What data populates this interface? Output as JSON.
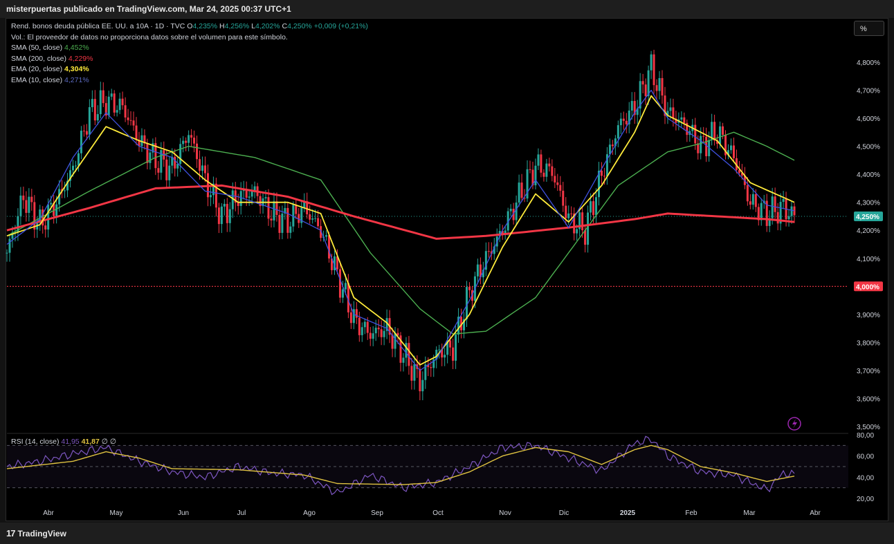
{
  "header": {
    "title": "misterpuertas publicado en TradingView.com, Mar 24, 2025 00:37 UTC+1"
  },
  "footer": {
    "brand": "TradingView"
  },
  "toolbar": {
    "scale_label": "%"
  },
  "legend": {
    "symbol": "Rend. bonos deuda pública EE. UU. a 10A · 1D · TVC",
    "o_label": "O",
    "o_value": "4,235%",
    "h_label": "H",
    "h_value": "4,256%",
    "l_label": "L",
    "l_value": "4,202%",
    "c_label": "C",
    "c_value": "4,250%",
    "change": "+0,009 (+0,21%)",
    "vol_note": "Vol.: El proveedor de datos no proporciona datos sobre el volumen para este símbolo.",
    "indicators": [
      {
        "name": "SMA (50, close)",
        "value": "4,452%",
        "color": "#4caf50"
      },
      {
        "name": "SMA (200, close)",
        "value": "4,229%",
        "color": "#f23645"
      },
      {
        "name": "EMA (20, close)",
        "value": "4,304%",
        "color": "#ffeb3b"
      },
      {
        "name": "EMA (10, close)",
        "value": "4,271%",
        "color": "#5c6bc0"
      }
    ]
  },
  "rsi_legend": {
    "name": "RSI (14, close)",
    "value1": "41,95",
    "value2": "41,87",
    "extra1": "∅",
    "extra2": "∅"
  },
  "colors": {
    "up": "#26a69a",
    "down": "#f23645",
    "sma50": "#4caf50",
    "sma200": "#f23645",
    "ema20": "#ffeb3b",
    "ema10": "#3f51e0",
    "rsi": "#7e57c2",
    "rsi_ma": "#e0c341",
    "badge_last": "#26a69a",
    "badge_level": "#f23645"
  },
  "icons": {
    "alert": "lightning-icon"
  },
  "chart_data": [
    {
      "type": "candlestick",
      "title": "Rend. bonos deuda pública EE. UU. a 10A · 1D · TVC",
      "y_unit": "%",
      "ylim": [
        3.5,
        4.8
      ],
      "y_ticks": [
        "4,800%",
        "4,700%",
        "4,600%",
        "4,500%",
        "4,400%",
        "4,300%",
        "4,200%",
        "4,100%",
        "3,900%",
        "3,800%",
        "3,700%",
        "3,600%",
        "3,500%"
      ],
      "y_tick_values": [
        4.8,
        4.7,
        4.6,
        4.5,
        4.4,
        4.3,
        4.2,
        4.1,
        3.9,
        3.8,
        3.7,
        3.6,
        3.5
      ],
      "x_ticks": [
        "Abr",
        "May",
        "Jun",
        "Jul",
        "Ago",
        "Sep",
        "Oct",
        "Nov",
        "Dic",
        "2025",
        "Feb",
        "Mar",
        "Abr"
      ],
      "last_price": {
        "value": 4.25,
        "label": "4,250%"
      },
      "horizontal_level": {
        "value": 4.0,
        "label": "4,000%"
      },
      "close_path": [
        [
          0,
          4.12
        ],
        [
          6,
          4.32
        ],
        [
          12,
          4.22
        ],
        [
          18,
          4.3
        ],
        [
          24,
          4.42
        ],
        [
          30,
          4.62
        ],
        [
          36,
          4.66
        ],
        [
          42,
          4.64
        ],
        [
          48,
          4.52
        ],
        [
          54,
          4.45
        ],
        [
          60,
          4.42
        ],
        [
          66,
          4.55
        ],
        [
          72,
          4.38
        ],
        [
          78,
          4.25
        ],
        [
          84,
          4.32
        ],
        [
          90,
          4.34
        ],
        [
          96,
          4.26
        ],
        [
          102,
          4.23
        ],
        [
          108,
          4.28
        ],
        [
          114,
          4.2
        ],
        [
          120,
          4.04
        ],
        [
          126,
          3.88
        ],
        [
          132,
          3.83
        ],
        [
          138,
          3.85
        ],
        [
          144,
          3.76
        ],
        [
          150,
          3.66
        ],
        [
          156,
          3.76
        ],
        [
          162,
          3.78
        ],
        [
          168,
          3.98
        ],
        [
          174,
          4.1
        ],
        [
          180,
          4.2
        ],
        [
          186,
          4.32
        ],
        [
          192,
          4.43
        ],
        [
          198,
          4.41
        ],
        [
          204,
          4.24
        ],
        [
          210,
          4.2
        ],
        [
          216,
          4.4
        ],
        [
          222,
          4.57
        ],
        [
          228,
          4.64
        ],
        [
          234,
          4.78
        ],
        [
          240,
          4.62
        ],
        [
          246,
          4.58
        ],
        [
          252,
          4.5
        ],
        [
          258,
          4.55
        ],
        [
          264,
          4.46
        ],
        [
          270,
          4.3
        ],
        [
          276,
          4.26
        ],
        [
          282,
          4.28
        ],
        [
          286,
          4.25
        ]
      ],
      "series": [
        {
          "name": "SMA (50, close)",
          "values": [
            [
              0,
              4.18
            ],
            [
              30,
              4.34
            ],
            [
              54,
              4.46
            ],
            [
              66,
              4.5
            ],
            [
              90,
              4.46
            ],
            [
              114,
              4.38
            ],
            [
              132,
              4.12
            ],
            [
              150,
              3.92
            ],
            [
              162,
              3.83
            ],
            [
              174,
              3.84
            ],
            [
              192,
              3.96
            ],
            [
              204,
              4.12
            ],
            [
              222,
              4.36
            ],
            [
              240,
              4.48
            ],
            [
              252,
              4.51
            ],
            [
              264,
              4.55
            ],
            [
              276,
              4.5
            ],
            [
              286,
              4.45
            ]
          ]
        },
        {
          "name": "SMA (200, close)",
          "values": [
            [
              0,
              4.2
            ],
            [
              30,
              4.28
            ],
            [
              54,
              4.35
            ],
            [
              78,
              4.36
            ],
            [
              102,
              4.32
            ],
            [
              126,
              4.25
            ],
            [
              156,
              4.17
            ],
            [
              174,
              4.18
            ],
            [
              204,
              4.21
            ],
            [
              228,
              4.24
            ],
            [
              240,
              4.26
            ],
            [
              258,
              4.25
            ],
            [
              276,
              4.24
            ],
            [
              286,
              4.23
            ]
          ]
        },
        {
          "name": "EMA (20, close)",
          "values": [
            [
              0,
              4.18
            ],
            [
              12,
              4.22
            ],
            [
              24,
              4.4
            ],
            [
              36,
              4.57
            ],
            [
              48,
              4.52
            ],
            [
              60,
              4.48
            ],
            [
              72,
              4.38
            ],
            [
              84,
              4.3
            ],
            [
              102,
              4.3
            ],
            [
              114,
              4.26
            ],
            [
              126,
              3.96
            ],
            [
              138,
              3.87
            ],
            [
              150,
              3.72
            ],
            [
              156,
              3.75
            ],
            [
              168,
              3.9
            ],
            [
              180,
              4.14
            ],
            [
              192,
              4.33
            ],
            [
              204,
              4.23
            ],
            [
              216,
              4.36
            ],
            [
              228,
              4.55
            ],
            [
              234,
              4.68
            ],
            [
              240,
              4.61
            ],
            [
              258,
              4.52
            ],
            [
              270,
              4.37
            ],
            [
              286,
              4.3
            ]
          ]
        },
        {
          "name": "EMA (10, close)",
          "values": [
            [
              0,
              4.15
            ],
            [
              12,
              4.24
            ],
            [
              24,
              4.46
            ],
            [
              36,
              4.62
            ],
            [
              48,
              4.5
            ],
            [
              60,
              4.46
            ],
            [
              72,
              4.34
            ],
            [
              84,
              4.32
            ],
            [
              102,
              4.26
            ],
            [
              114,
              4.2
            ],
            [
              126,
              3.9
            ],
            [
              138,
              3.85
            ],
            [
              150,
              3.7
            ],
            [
              156,
              3.74
            ],
            [
              168,
              3.95
            ],
            [
              180,
              4.2
            ],
            [
              192,
              4.38
            ],
            [
              204,
              4.21
            ],
            [
              216,
              4.42
            ],
            [
              228,
              4.62
            ],
            [
              234,
              4.7
            ],
            [
              240,
              4.6
            ],
            [
              252,
              4.52
            ],
            [
              264,
              4.42
            ],
            [
              276,
              4.29
            ],
            [
              286,
              4.27
            ]
          ]
        }
      ]
    },
    {
      "type": "line",
      "title": "RSI (14, close)",
      "ylim": [
        15,
        80
      ],
      "y_ticks": [
        "80,00",
        "60,00",
        "40,00",
        "20,00"
      ],
      "y_tick_values": [
        80,
        60,
        40,
        20
      ],
      "bands": [
        70,
        50,
        30
      ],
      "series": [
        {
          "name": "RSI",
          "values": [
            [
              0,
              50
            ],
            [
              12,
              55
            ],
            [
              24,
              62
            ],
            [
              36,
              68
            ],
            [
              48,
              55
            ],
            [
              60,
              45
            ],
            [
              72,
              40
            ],
            [
              84,
              50
            ],
            [
              96,
              44
            ],
            [
              108,
              42
            ],
            [
              120,
              25
            ],
            [
              132,
              42
            ],
            [
              144,
              30
            ],
            [
              156,
              35
            ],
            [
              168,
              50
            ],
            [
              180,
              68
            ],
            [
              192,
              70
            ],
            [
              204,
              58
            ],
            [
              216,
              46
            ],
            [
              228,
              72
            ],
            [
              234,
              76
            ],
            [
              240,
              60
            ],
            [
              252,
              45
            ],
            [
              264,
              42
            ],
            [
              276,
              28
            ],
            [
              282,
              44
            ],
            [
              286,
              42
            ]
          ]
        },
        {
          "name": "RSI MA",
          "values": [
            [
              0,
              48
            ],
            [
              24,
              55
            ],
            [
              36,
              64
            ],
            [
              48,
              58
            ],
            [
              60,
              48
            ],
            [
              84,
              47
            ],
            [
              108,
              42
            ],
            [
              120,
              34
            ],
            [
              144,
              33
            ],
            [
              156,
              35
            ],
            [
              168,
              45
            ],
            [
              180,
              60
            ],
            [
              192,
              68
            ],
            [
              204,
              64
            ],
            [
              216,
              52
            ],
            [
              228,
              66
            ],
            [
              234,
              70
            ],
            [
              240,
              66
            ],
            [
              252,
              50
            ],
            [
              264,
              44
            ],
            [
              276,
              36
            ],
            [
              286,
              41
            ]
          ]
        }
      ]
    }
  ]
}
